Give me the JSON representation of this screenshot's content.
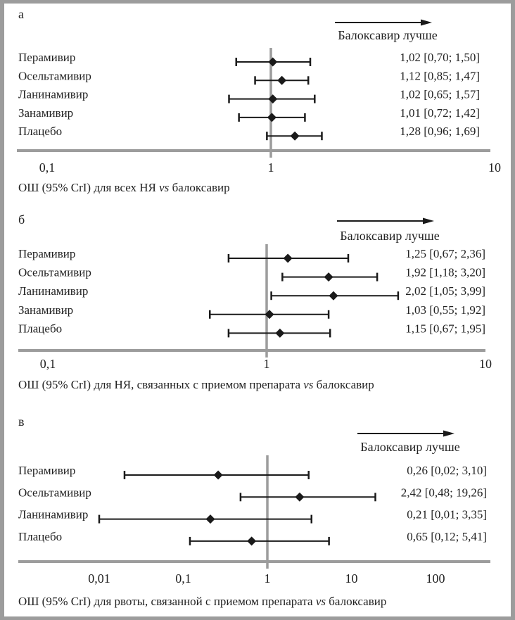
{
  "chart_data": [
    {
      "type": "forest",
      "panel_label": "а",
      "title": "",
      "xlabel_parts": [
        {
          "text": "ОШ (95% CrI) для всех НЯ ",
          "italic": false
        },
        {
          "text": "vs",
          "italic": true
        },
        {
          "text": " балоксавир",
          "italic": false
        }
      ],
      "xscale": "log",
      "xlim": [
        0.1,
        10
      ],
      "xticks": [
        0.1,
        1,
        10
      ],
      "xtick_labels": [
        "0,1",
        "1",
        "10"
      ],
      "reference_line": 1,
      "direction_label": "Балоксавир лучше",
      "direction": "right",
      "rows": [
        {
          "label": "Перамивир",
          "or": 1.02,
          "lo": 0.7,
          "hi": 1.5,
          "text": "1,02 [0,70; 1,50]"
        },
        {
          "label": "Осельтамивир",
          "or": 1.12,
          "lo": 0.85,
          "hi": 1.47,
          "text": "1,12 [0,85; 1,47]"
        },
        {
          "label": "Ланинамивир",
          "or": 1.02,
          "lo": 0.65,
          "hi": 1.57,
          "text": "1,02 [0,65; 1,57]"
        },
        {
          "label": "Занамивир",
          "or": 1.01,
          "lo": 0.72,
          "hi": 1.42,
          "text": "1,01 [0,72; 1,42]"
        },
        {
          "label": "Плацебо",
          "or": 1.28,
          "lo": 0.96,
          "hi": 1.69,
          "text": "1,28 [0,96; 1,69]"
        }
      ]
    },
    {
      "type": "forest",
      "panel_label": "б",
      "title": "",
      "xlabel_parts": [
        {
          "text": "ОШ (95% CrI) для НЯ, связанных с приемом препарата ",
          "italic": false
        },
        {
          "text": "vs",
          "italic": true
        },
        {
          "text": " балоксавир",
          "italic": false
        }
      ],
      "xscale": "log",
      "xlim": [
        0.1,
        10
      ],
      "xticks": [
        0.1,
        1,
        10
      ],
      "xtick_labels": [
        "0,1",
        "1",
        "10"
      ],
      "reference_line": 1,
      "direction_label": "Балоксавир лучше",
      "direction": "right",
      "rows": [
        {
          "label": "Перамивир",
          "or": 1.25,
          "lo": 0.67,
          "hi": 2.36,
          "text": "1,25 [0,67; 2,36]"
        },
        {
          "label": "Осельтамивир",
          "or": 1.92,
          "lo": 1.18,
          "hi": 3.2,
          "text": "1,92 [1,18; 3,20]"
        },
        {
          "label": "Ланинамивир",
          "or": 2.02,
          "lo": 1.05,
          "hi": 3.99,
          "text": "2,02 [1,05; 3,99]"
        },
        {
          "label": "Занамивир",
          "or": 1.03,
          "lo": 0.55,
          "hi": 1.92,
          "text": "1,03 [0,55; 1,92]"
        },
        {
          "label": "Плацебо",
          "or": 1.15,
          "lo": 0.67,
          "hi": 1.95,
          "text": "1,15 [0,67; 1,95]"
        }
      ]
    },
    {
      "type": "forest",
      "panel_label": "в",
      "title": "",
      "xlabel_parts": [
        {
          "text": "ОШ (95% CrI) для рвоты, связанной с приемом препарата ",
          "italic": false
        },
        {
          "text": "vs",
          "italic": true
        },
        {
          "text": " балоксавир",
          "italic": false
        }
      ],
      "xscale": "log",
      "xlim": [
        0.005,
        300
      ],
      "xticks": [
        0.01,
        0.1,
        1,
        10,
        100
      ],
      "xtick_labels": [
        "0,01",
        "0,1",
        "1",
        "10",
        "100"
      ],
      "reference_line": 1,
      "direction_label": "Балоксавир лучше",
      "direction": "right",
      "rows": [
        {
          "label": "Перамивир",
          "or": 0.26,
          "lo": 0.02,
          "hi": 3.1,
          "text": "0,26 [0,02; 3,10]"
        },
        {
          "label": "Осельтамивир",
          "or": 2.42,
          "lo": 0.48,
          "hi": 19.26,
          "text": "2,42 [0,48; 19,26]"
        },
        {
          "label": "Ланинамивир",
          "or": 0.21,
          "lo": 0.01,
          "hi": 3.35,
          "text": "0,21 [0,01; 3,35]"
        },
        {
          "label": "Плацебо",
          "or": 0.65,
          "lo": 0.12,
          "hi": 5.41,
          "text": "0,65 [0,12; 5,41]"
        }
      ]
    }
  ],
  "colors": {
    "frame": "#9c9c9c",
    "axis": "#9c9c9c",
    "marks": "#1a1a1a",
    "text": "#222222"
  }
}
